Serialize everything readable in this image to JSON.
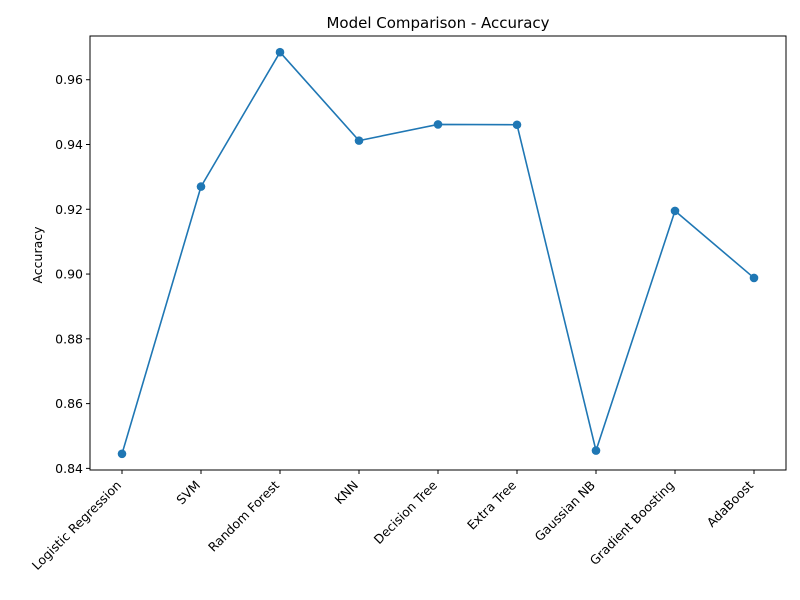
{
  "chart_data": {
    "type": "line",
    "title": "Model Comparison - Accuracy",
    "xlabel": "",
    "ylabel": "Accuracy",
    "categories": [
      "Logistic Regression",
      "SVM",
      "Random Forest",
      "KNN",
      "Decision Tree",
      "Extra Tree",
      "Gaussian NB",
      "Gradient Boosting",
      "AdaBoost"
    ],
    "series": [
      {
        "values": [
          0.8445,
          0.927,
          0.9685,
          0.9412,
          0.9462,
          0.9461,
          0.8455,
          0.9195,
          0.8988
        ],
        "color": "#1f77b4",
        "marker": "circle"
      }
    ],
    "ylim": [
      0.8395,
      0.9735
    ],
    "yticks": [
      0.84,
      0.86,
      0.88,
      0.9,
      0.92,
      0.94,
      0.96
    ],
    "ytick_labels": [
      "0.84",
      "0.86",
      "0.88",
      "0.90",
      "0.92",
      "0.94",
      "0.96"
    ],
    "grid": false,
    "legend": "none"
  }
}
